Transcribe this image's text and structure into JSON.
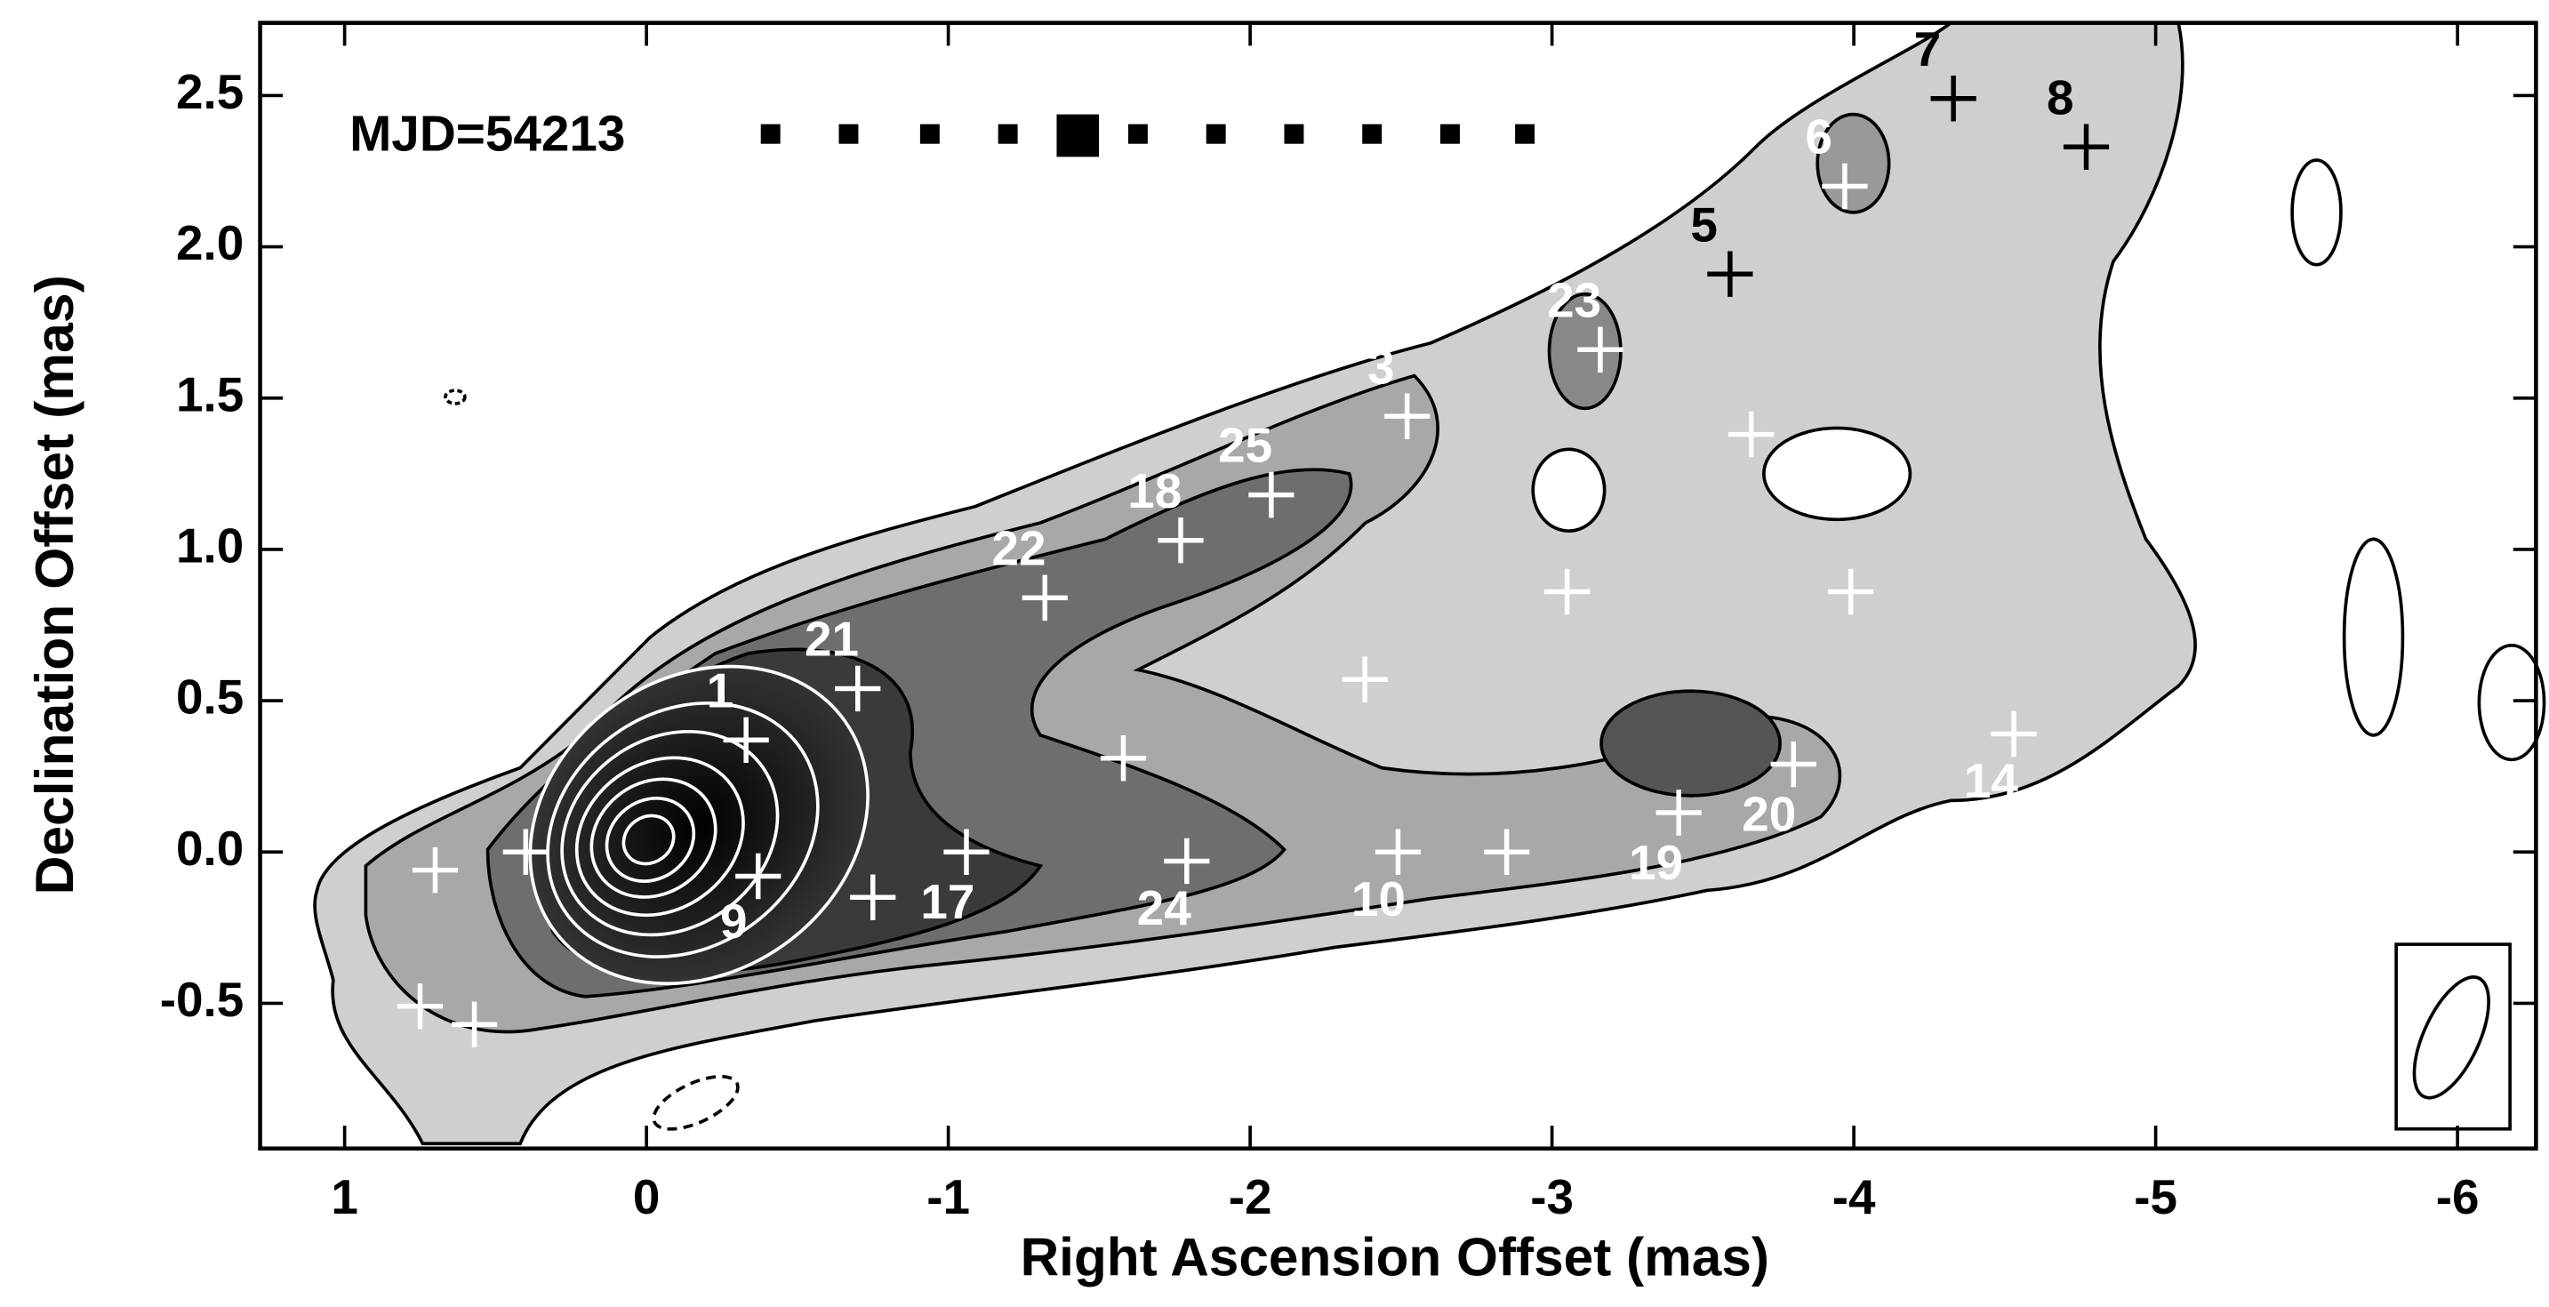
{
  "chart_data": {
    "type": "scatter",
    "annotation": "MJD=54213",
    "x_label": "Right Ascension Offset (mas)",
    "y_label": "Declination Offset (mas)",
    "xlim": [
      1.28,
      -6.26
    ],
    "ylim": [
      -0.98,
      2.74
    ],
    "xticks": [
      1,
      0,
      -1,
      -2,
      -3,
      -4,
      -5,
      -6
    ],
    "yticks": [
      -0.5,
      {
        "value": 0,
        "label": "0.0"
      },
      0.5,
      {
        "value": 1,
        "label": "1.0"
      },
      1.5,
      {
        "value": 2,
        "label": "2.0"
      },
      2.5
    ],
    "series": [
      {
        "color": "#ffffff",
        "x": [
          -3.97,
          -3.16,
          -2.52,
          -2.07,
          -1.77,
          -1.32,
          -0.7,
          -0.33,
          -0.37,
          -0.75,
          -1.06,
          -1.79,
          -1.58,
          -2.38,
          -2.49,
          -2.85,
          -3.42,
          -3.8,
          -4.53,
          -3.05,
          -3.99,
          -3.66,
          0.7,
          0.4,
          0.75,
          0.57
        ],
        "values": [
          2.2,
          1.66,
          1.44,
          1.18,
          1.03,
          0.84,
          0.54,
          0.37,
          -0.08,
          -0.15,
          0.0,
          -0.03,
          0.31,
          0.57,
          0.0,
          0.0,
          0.13,
          0.29,
          0.39,
          0.86,
          0.86,
          1.38,
          -0.06,
          0.0,
          -0.51,
          -0.57
        ],
        "point_labels": [
          "6",
          "23",
          "3",
          "25",
          "18",
          "22",
          "21",
          "1",
          "9",
          "17",
          null,
          "24",
          null,
          null,
          "10",
          null,
          "19",
          "20",
          "14",
          null,
          null,
          null,
          null,
          null,
          null,
          null
        ]
      },
      {
        "color": "#000000",
        "x": [
          -4.33,
          -4.77,
          -3.59
        ],
        "values": [
          2.49,
          2.33,
          1.91
        ],
        "point_labels": [
          "7",
          "8",
          "5"
        ]
      }
    ]
  }
}
